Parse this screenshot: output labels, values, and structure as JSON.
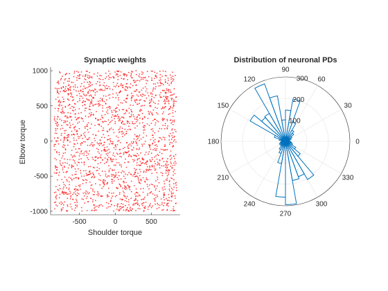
{
  "chart_data": [
    {
      "type": "scatter",
      "title": "Synaptic weights",
      "xlabel": "Shoulder torque",
      "ylabel": "Elbow torque",
      "xlim": [
        -900,
        900
      ],
      "ylim": [
        -1050,
        1050
      ],
      "xticks": [
        -500,
        0,
        500
      ],
      "yticks": [
        -1000,
        -500,
        0,
        500,
        1000
      ],
      "grid": false,
      "marker_color": "#ff0000",
      "n_points": 2000,
      "x_range": [
        -850,
        850
      ],
      "y_range": [
        -1000,
        1000
      ]
    },
    {
      "type": "polar-histogram",
      "title": "Distribution of neuronal PDs",
      "theta_ticks": [
        0,
        30,
        60,
        90,
        120,
        150,
        180,
        210,
        240,
        270,
        300,
        330
      ],
      "r_ticks": [
        100,
        200,
        300
      ],
      "rlim": [
        0,
        300
      ],
      "r_tick_angle_deg": 80,
      "bin_width_deg": 10,
      "bar_color": "#0072bd",
      "bins": [
        {
          "center": 5,
          "value": 15
        },
        {
          "center": 15,
          "value": 20
        },
        {
          "center": 25,
          "value": 28
        },
        {
          "center": 35,
          "value": 35
        },
        {
          "center": 45,
          "value": 50
        },
        {
          "center": 55,
          "value": 60
        },
        {
          "center": 65,
          "value": 95
        },
        {
          "center": 75,
          "value": 200
        },
        {
          "center": 85,
          "value": 145
        },
        {
          "center": 95,
          "value": 100
        },
        {
          "center": 105,
          "value": 215
        },
        {
          "center": 115,
          "value": 285
        },
        {
          "center": 125,
          "value": 150
        },
        {
          "center": 135,
          "value": 145
        },
        {
          "center": 145,
          "value": 190
        },
        {
          "center": 155,
          "value": 55
        },
        {
          "center": 165,
          "value": 30
        },
        {
          "center": 175,
          "value": 20
        },
        {
          "center": 185,
          "value": 20
        },
        {
          "center": 195,
          "value": 25
        },
        {
          "center": 205,
          "value": 30
        },
        {
          "center": 215,
          "value": 25
        },
        {
          "center": 225,
          "value": 30
        },
        {
          "center": 235,
          "value": 45
        },
        {
          "center": 245,
          "value": 60
        },
        {
          "center": 255,
          "value": 105
        },
        {
          "center": 265,
          "value": 260
        },
        {
          "center": 275,
          "value": 295
        },
        {
          "center": 285,
          "value": 185
        },
        {
          "center": 295,
          "value": 175
        },
        {
          "center": 305,
          "value": 205
        },
        {
          "center": 315,
          "value": 90
        },
        {
          "center": 325,
          "value": 55
        },
        {
          "center": 335,
          "value": 35
        },
        {
          "center": 345,
          "value": 30
        },
        {
          "center": 355,
          "value": 25
        }
      ]
    }
  ]
}
